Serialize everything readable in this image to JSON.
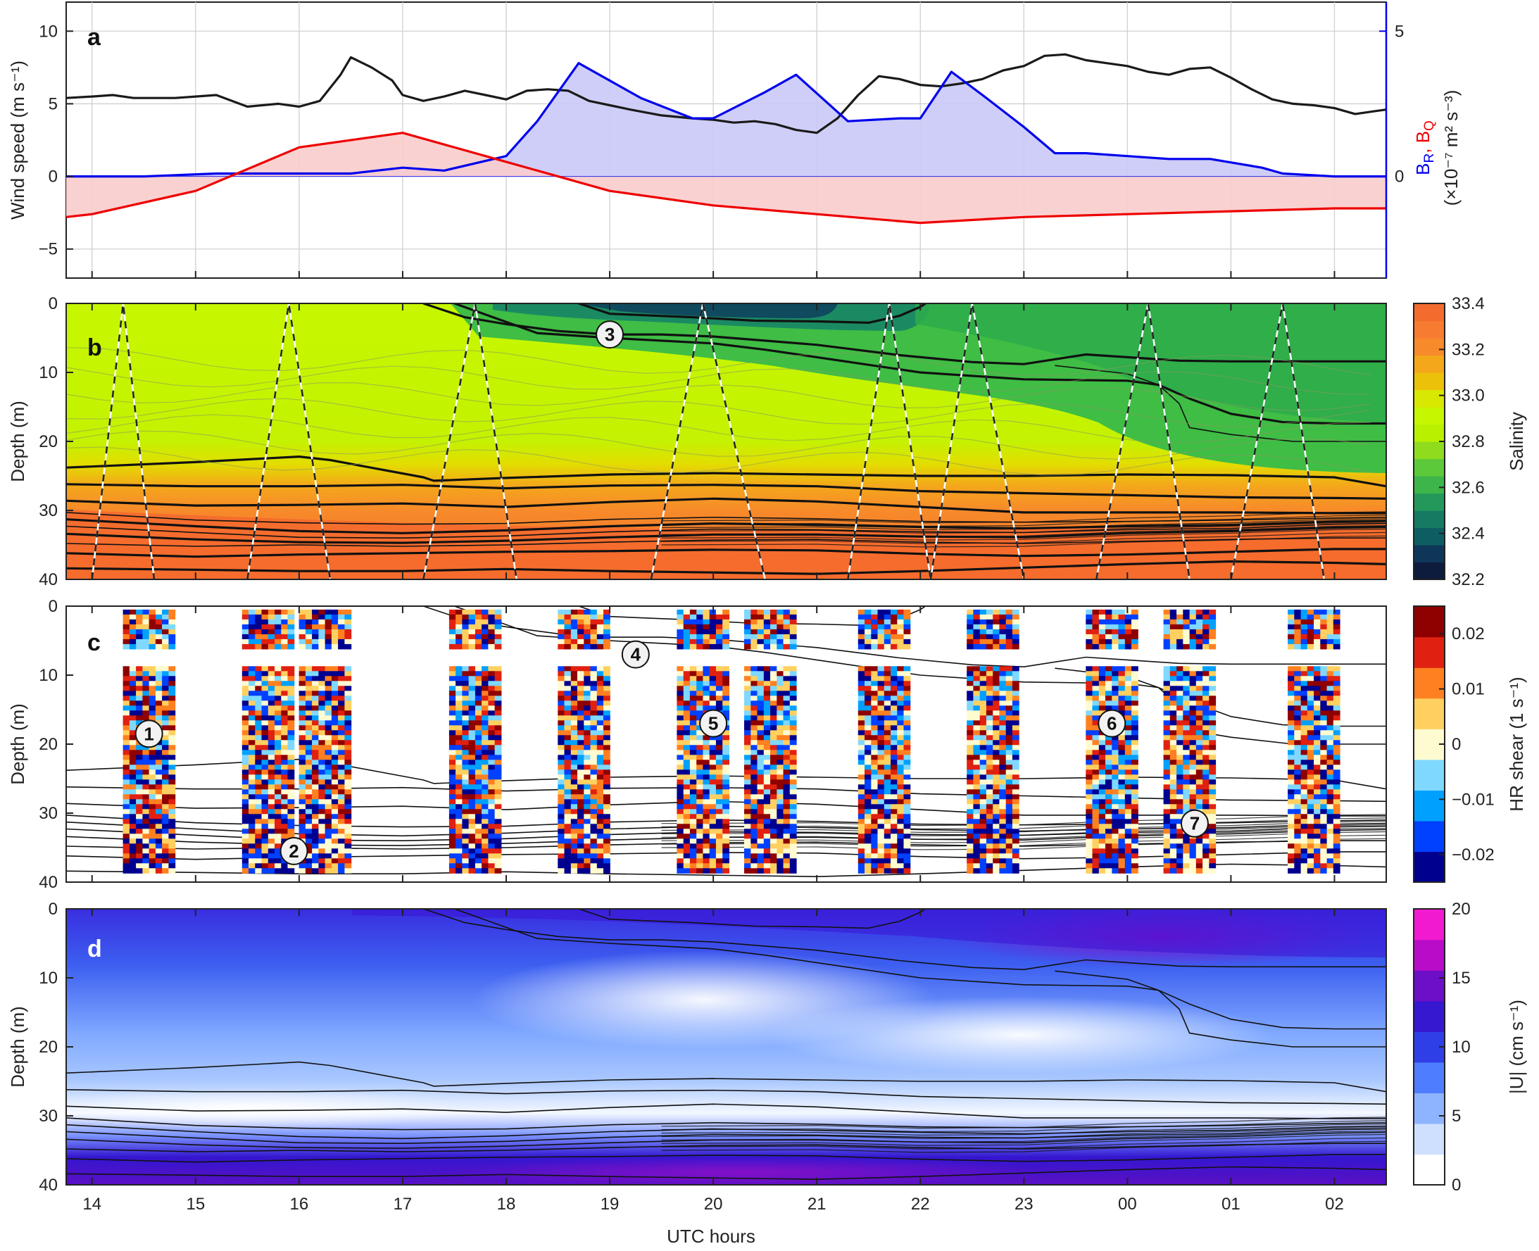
{
  "chart_data": [
    {
      "type": "line",
      "panel": "a",
      "x_ticks": [
        "14",
        "15",
        "16",
        "17",
        "18",
        "19",
        "20",
        "21",
        "22",
        "23",
        "00",
        "01",
        "02"
      ],
      "ylabel": "Wind speed (m s⁻¹)",
      "ylim": [
        -7,
        12
      ],
      "y_ticks": [
        "10",
        "5",
        "0",
        "−5"
      ],
      "y_right_label_line1": "B",
      "y_right_label_sub1": "R",
      "y_right_label_sep": ", B",
      "y_right_label_sub2": "Q",
      "y_right_label_line2": "(×10⁻⁷ m² s⁻³)",
      "y2lim": [
        -3.5,
        6
      ],
      "y2_ticks": [
        "5",
        "0"
      ],
      "grid": true,
      "series": [
        {
          "kind": "wind_speed",
          "color": "#1a1a1a",
          "x": [
            13.75,
            14.0,
            14.2,
            14.4,
            14.6,
            14.8,
            15.0,
            15.2,
            15.5,
            15.8,
            16.0,
            16.2,
            16.4,
            16.5,
            16.7,
            16.9,
            17.0,
            17.2,
            17.4,
            17.6,
            17.8,
            18.0,
            18.2,
            18.4,
            18.6,
            18.8,
            19.0,
            19.2,
            19.5,
            19.8,
            20.0,
            20.2,
            20.4,
            20.6,
            20.8,
            21.0,
            21.2,
            21.4,
            21.6,
            21.8,
            22.0,
            22.2,
            22.4,
            22.6,
            22.8,
            23.0,
            23.2,
            23.4,
            23.6,
            23.8,
            24.0,
            24.2,
            24.4,
            24.6,
            24.8,
            25.0,
            25.2,
            25.4,
            25.6,
            25.8,
            26.0,
            26.2,
            26.4,
            26.5
          ],
          "y": [
            5.4,
            5.5,
            5.6,
            5.4,
            5.4,
            5.4,
            5.5,
            5.6,
            4.8,
            5.0,
            4.8,
            5.2,
            7.0,
            8.2,
            7.5,
            6.6,
            5.6,
            5.2,
            5.5,
            5.9,
            5.6,
            5.3,
            5.9,
            6.0,
            5.9,
            5.2,
            4.9,
            4.6,
            4.2,
            4.0,
            3.9,
            3.7,
            3.8,
            3.6,
            3.2,
            3.0,
            4.0,
            5.6,
            6.9,
            6.7,
            6.3,
            6.2,
            6.4,
            6.7,
            7.3,
            7.6,
            8.3,
            8.4,
            8.0,
            7.8,
            7.6,
            7.2,
            7.0,
            7.4,
            7.5,
            6.8,
            6.0,
            5.3,
            5.0,
            4.9,
            4.7,
            4.3,
            4.5,
            4.6
          ]
        },
        {
          "kind": "B_R",
          "color": "#0000ee",
          "fill": "#c9c9f7",
          "x": [
            13.75,
            14.0,
            14.5,
            15.2,
            16.0,
            16.3,
            16.5,
            17.0,
            17.4,
            18.0,
            18.3,
            18.7,
            19.3,
            19.8,
            20.0,
            20.5,
            20.8,
            21.3,
            21.8,
            22.0,
            22.3,
            22.6,
            23.0,
            23.3,
            23.6,
            24.0,
            24.4,
            24.8,
            25.3,
            25.5,
            26.0,
            26.5
          ],
          "y": [
            0.0,
            0.0,
            0.0,
            0.1,
            0.1,
            0.1,
            0.1,
            0.3,
            0.2,
            0.7,
            1.9,
            3.9,
            2.7,
            2.0,
            2.0,
            2.9,
            3.5,
            1.9,
            2.0,
            2.0,
            3.6,
            2.8,
            1.7,
            0.8,
            0.8,
            0.7,
            0.6,
            0.6,
            0.3,
            0.1,
            0.0,
            0.0
          ]
        },
        {
          "kind": "B_Q",
          "color": "#ee0000",
          "fill": "#f9cccc",
          "x": [
            13.75,
            14.0,
            15.0,
            16.0,
            17.0,
            18.0,
            19.0,
            20.0,
            21.0,
            22.0,
            23.0,
            24.0,
            25.0,
            26.0,
            26.5
          ],
          "y": [
            -1.4,
            -1.3,
            -0.5,
            1.0,
            1.5,
            0.5,
            -0.5,
            -1.0,
            -1.3,
            -1.6,
            -1.4,
            -1.3,
            -1.2,
            -1.1,
            -1.1
          ]
        }
      ]
    },
    {
      "type": "heatmap",
      "panel": "b",
      "ylabel": "Depth (m)",
      "ylim": [
        0,
        40
      ],
      "y_ticks": [
        "0",
        "10",
        "20",
        "30",
        "40"
      ],
      "colorbar_label": "Salinity",
      "colorbar_range": [
        32.2,
        33.4
      ],
      "colorbar_ticks": [
        "33.4",
        "33.2",
        "33.0",
        "32.8",
        "32.6",
        "32.4",
        "32.2"
      ],
      "colormap": [
        "#0d1b3d",
        "#0e3658",
        "#0d5e63",
        "#167a62",
        "#23985a",
        "#3db54a",
        "#5cc93a",
        "#8fdc1f",
        "#b8f000",
        "#c6f700",
        "#d9e800",
        "#ecc10a",
        "#f4a71b",
        "#f78a2a",
        "#f77b30",
        "#f46c2d"
      ],
      "markers": [
        {
          "label": "3",
          "x": 19.0,
          "depth": 4.5
        }
      ]
    },
    {
      "type": "heatmap",
      "panel": "c",
      "ylabel": "Depth (m)",
      "ylim": [
        0,
        40
      ],
      "y_ticks": [
        "0",
        "10",
        "20",
        "30",
        "40"
      ],
      "colorbar_label": "HR shear (1 s⁻¹)",
      "colorbar_range": [
        -0.025,
        0.025
      ],
      "colorbar_ticks": [
        "0.02",
        "0.01",
        "0",
        "−0.01",
        "−0.02"
      ],
      "colormap": [
        "#00008f",
        "#0040ff",
        "#00a0ff",
        "#7fd8ff",
        "#fffbd0",
        "#ffd060",
        "#ff8020",
        "#e02010",
        "#8f0000"
      ],
      "markers": [
        {
          "label": "1",
          "x": 14.55,
          "depth": 18.5
        },
        {
          "label": "2",
          "x": 15.95,
          "depth": 35.5
        },
        {
          "label": "4",
          "x": 19.25,
          "depth": 7.0
        },
        {
          "label": "5",
          "x": 20.0,
          "depth": 17.0
        },
        {
          "label": "6",
          "x": 23.85,
          "depth": 17.0
        },
        {
          "label": "7",
          "x": 24.65,
          "depth": 31.5
        }
      ]
    },
    {
      "type": "heatmap",
      "panel": "d",
      "ylabel": "Depth (m)",
      "ylim": [
        0,
        40
      ],
      "y_ticks": [
        "0",
        "10",
        "20",
        "30",
        "40"
      ],
      "xlabel": "UTC hours",
      "x_ticks": [
        "14",
        "15",
        "16",
        "17",
        "18",
        "19",
        "20",
        "21",
        "22",
        "23",
        "00",
        "01",
        "02"
      ],
      "colorbar_label": "|U| (cm s⁻¹)",
      "colorbar_range": [
        0,
        20
      ],
      "colorbar_ticks": [
        "20",
        "15",
        "10",
        "5",
        "0"
      ],
      "colormap": [
        "#ffffff",
        "#cfe0ff",
        "#8fb4ff",
        "#4f7dff",
        "#2e3fe8",
        "#3518d0",
        "#6d0fc6",
        "#b80cc8",
        "#f21ad0"
      ]
    }
  ],
  "panel_labels": [
    "a",
    "b",
    "c",
    "d"
  ]
}
